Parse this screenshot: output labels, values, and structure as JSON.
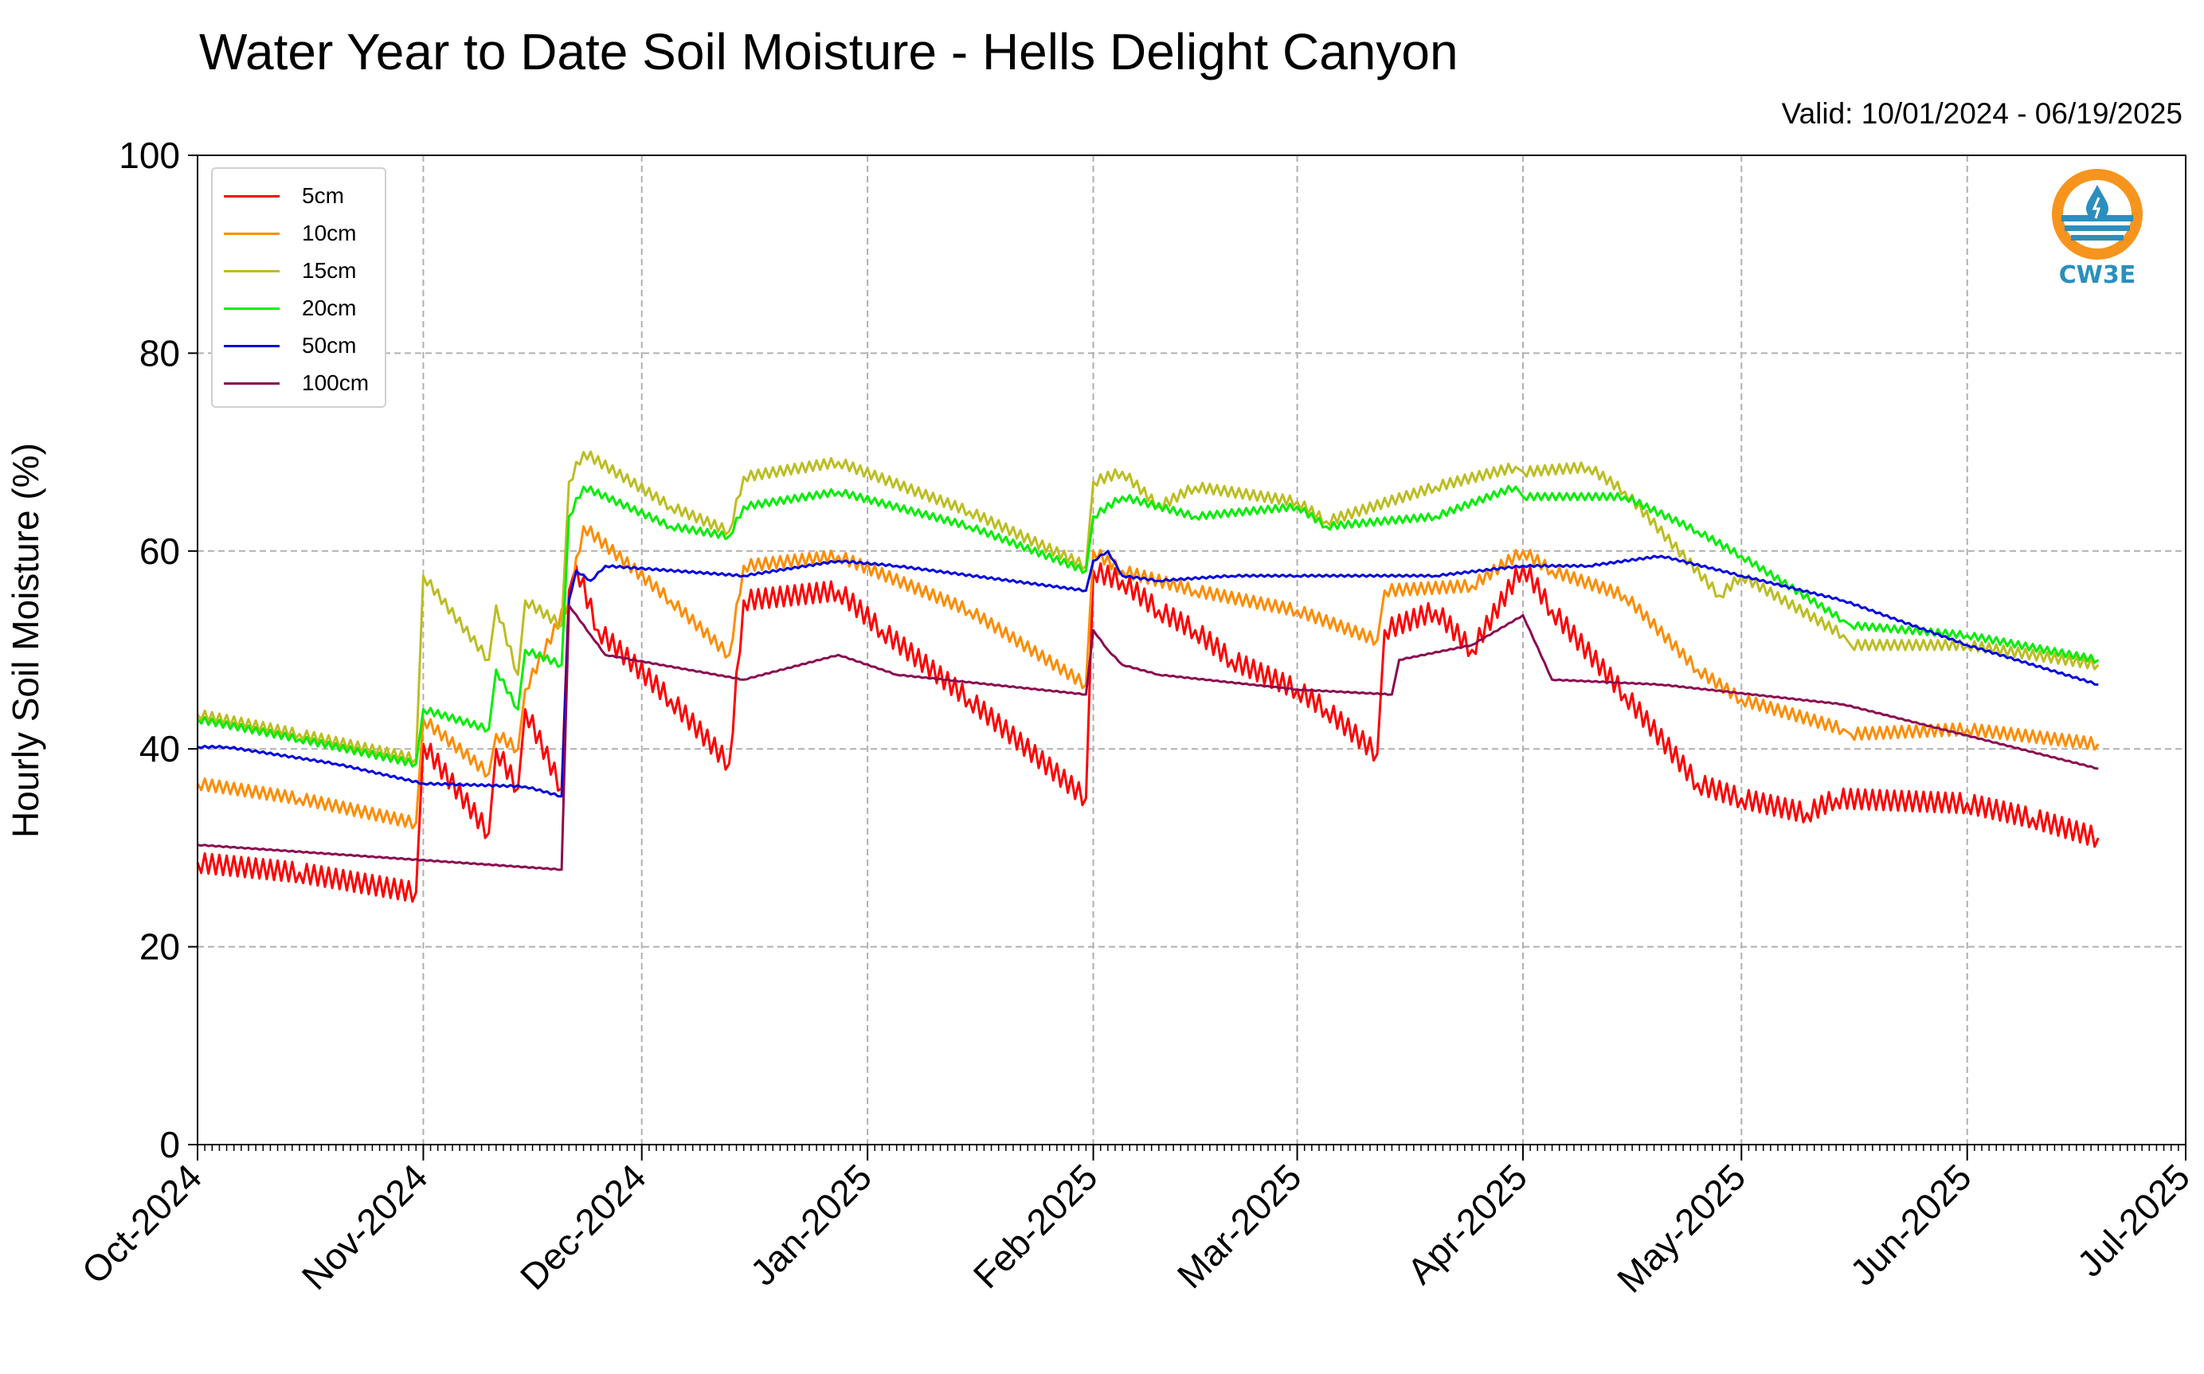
{
  "chart_data": {
    "type": "line",
    "title": "Water Year to Date Soil Moisture - Hells Delight Canyon",
    "subtitle": "Valid: 10/01/2024 - 06/19/2025",
    "xlabel": "",
    "ylabel": "Hourly Soil Moisture (%)",
    "ylim": [
      0,
      100
    ],
    "yticks": [
      0,
      20,
      40,
      60,
      80,
      100
    ],
    "xlim": [
      "2024-10-01",
      "2025-07-01"
    ],
    "xticks": [
      {
        "date": "2024-10-01",
        "label": "Oct-2024"
      },
      {
        "date": "2024-11-01",
        "label": "Nov-2024"
      },
      {
        "date": "2024-12-01",
        "label": "Dec-2024"
      },
      {
        "date": "2025-01-01",
        "label": "Jan-2025"
      },
      {
        "date": "2025-02-01",
        "label": "Feb-2025"
      },
      {
        "date": "2025-03-01",
        "label": "Mar-2025"
      },
      {
        "date": "2025-04-01",
        "label": "Apr-2025"
      },
      {
        "date": "2025-05-01",
        "label": "May-2025"
      },
      {
        "date": "2025-06-01",
        "label": "Jun-2025"
      },
      {
        "date": "2025-07-01",
        "label": "Jul-2025"
      }
    ],
    "grid": true,
    "legend_position": "top-left",
    "series": [
      {
        "name": "5cm",
        "color": "#ff0000",
        "x": [
          "2024-10-01",
          "2024-10-15",
          "2024-10-31",
          "2024-11-01",
          "2024-11-10",
          "2024-11-11",
          "2024-11-14",
          "2024-11-15",
          "2024-11-20",
          "2024-11-21",
          "2024-11-22",
          "2024-11-25",
          "2024-12-05",
          "2024-12-13",
          "2024-12-15",
          "2024-12-28",
          "2025-01-03",
          "2025-01-15",
          "2025-01-31",
          "2025-02-01",
          "2025-02-05",
          "2025-02-10",
          "2025-02-15",
          "2025-02-20",
          "2025-03-01",
          "2025-03-05",
          "2025-03-12",
          "2025-03-13",
          "2025-03-20",
          "2025-03-25",
          "2025-04-01",
          "2025-04-05",
          "2025-04-15",
          "2025-04-25",
          "2025-05-01",
          "2025-05-10",
          "2025-05-14",
          "2025-06-01",
          "2025-06-10",
          "2025-06-19"
        ],
        "y": [
          28.5,
          27.5,
          25.5,
          40.5,
          31.5,
          40.0,
          36.0,
          44.0,
          36.0,
          56.0,
          58.5,
          52.0,
          45.0,
          38.5,
          55.0,
          56.0,
          52.0,
          45.0,
          35.0,
          58.0,
          57.0,
          54.0,
          52.0,
          49.0,
          46.0,
          44.0,
          39.5,
          52.0,
          54.0,
          50.0,
          58.5,
          54.0,
          45.5,
          36.5,
          35.0,
          33.5,
          35.0,
          34.5,
          33.0,
          31.0
        ]
      },
      {
        "name": "10cm",
        "color": "#ff8c00",
        "x": [
          "2024-10-01",
          "2024-10-15",
          "2024-10-31",
          "2024-11-01",
          "2024-11-10",
          "2024-11-11",
          "2024-11-14",
          "2024-11-15",
          "2024-11-21",
          "2024-11-23",
          "2024-12-05",
          "2024-12-13",
          "2024-12-15",
          "2024-12-28",
          "2025-01-15",
          "2025-01-31",
          "2025-02-01",
          "2025-02-05",
          "2025-02-15",
          "2025-03-01",
          "2025-03-12",
          "2025-03-13",
          "2025-03-25",
          "2025-04-01",
          "2025-04-05",
          "2025-04-15",
          "2025-04-25",
          "2025-05-01",
          "2025-05-15",
          "2025-05-16",
          "2025-06-01",
          "2025-06-19"
        ],
        "y": [
          36.5,
          35.0,
          32.5,
          43.0,
          37.5,
          41.5,
          40.0,
          46.0,
          55.0,
          62.5,
          55.0,
          49.5,
          58.5,
          59.5,
          54.0,
          46.5,
          60.0,
          58.0,
          56.0,
          54.0,
          51.0,
          56.0,
          56.5,
          60.0,
          58.0,
          55.5,
          48.0,
          45.0,
          42.0,
          41.5,
          42.0,
          40.5
        ]
      },
      {
        "name": "15cm",
        "color": "#bcbd22",
        "x": [
          "2024-10-01",
          "2024-10-15",
          "2024-10-31",
          "2024-11-01",
          "2024-11-10",
          "2024-11-11",
          "2024-11-14",
          "2024-11-15",
          "2024-11-20",
          "2024-11-21",
          "2024-11-23",
          "2024-12-05",
          "2024-12-13",
          "2024-12-15",
          "2024-12-28",
          "2025-01-15",
          "2025-01-31",
          "2025-02-01",
          "2025-02-05",
          "2025-02-10",
          "2025-02-15",
          "2025-03-01",
          "2025-03-05",
          "2025-03-20",
          "2025-03-31",
          "2025-04-01",
          "2025-04-10",
          "2025-04-15",
          "2025-04-28",
          "2025-05-01",
          "2025-05-15",
          "2025-05-16",
          "2025-06-01",
          "2025-06-19"
        ],
        "y": [
          43.5,
          41.5,
          39.0,
          57.5,
          49.0,
          54.5,
          47.5,
          55.0,
          52.5,
          67.0,
          70.0,
          64.5,
          62.0,
          67.5,
          69.0,
          64.0,
          58.5,
          67.0,
          68.0,
          64.5,
          66.5,
          65.0,
          63.0,
          66.5,
          68.5,
          68.0,
          68.5,
          66.0,
          55.5,
          57.5,
          51.5,
          50.5,
          50.5,
          48.5
        ]
      },
      {
        "name": "20cm",
        "color": "#00ee00",
        "x": [
          "2024-10-01",
          "2024-10-15",
          "2024-10-31",
          "2024-11-01",
          "2024-11-10",
          "2024-11-11",
          "2024-11-14",
          "2024-11-15",
          "2024-11-20",
          "2024-11-21",
          "2024-11-23",
          "2024-12-05",
          "2024-12-13",
          "2024-12-15",
          "2024-12-28",
          "2025-01-15",
          "2025-01-31",
          "2025-02-01",
          "2025-02-05",
          "2025-02-15",
          "2025-03-01",
          "2025-03-05",
          "2025-03-20",
          "2025-03-31",
          "2025-04-01",
          "2025-04-15",
          "2025-04-25",
          "2025-05-01",
          "2025-05-15",
          "2025-05-16",
          "2025-06-01",
          "2025-06-19"
        ],
        "y": [
          43.0,
          41.0,
          38.5,
          44.0,
          42.0,
          48.0,
          44.0,
          50.0,
          48.5,
          63.5,
          66.5,
          62.5,
          61.5,
          64.5,
          66.0,
          62.5,
          58.0,
          63.5,
          65.5,
          63.5,
          64.5,
          62.5,
          63.5,
          66.5,
          65.5,
          65.5,
          62.0,
          59.5,
          53.0,
          52.5,
          51.5,
          49.0
        ]
      },
      {
        "name": "50cm",
        "color": "#0000dd",
        "x": [
          "2024-10-01",
          "2024-10-05",
          "2024-10-20",
          "2024-11-01",
          "2024-11-15",
          "2024-11-20",
          "2024-11-21",
          "2024-11-22",
          "2024-11-24",
          "2024-11-26",
          "2024-12-15",
          "2024-12-28",
          "2025-01-05",
          "2025-01-31",
          "2025-02-01",
          "2025-02-03",
          "2025-02-05",
          "2025-02-10",
          "2025-02-20",
          "2025-03-01",
          "2025-03-20",
          "2025-04-01",
          "2025-04-10",
          "2025-04-20",
          "2025-05-01",
          "2025-05-15",
          "2025-06-01",
          "2025-06-19"
        ],
        "y": [
          40.2,
          40.2,
          38.5,
          36.5,
          36.2,
          35.2,
          55.0,
          58.0,
          57.0,
          58.5,
          57.5,
          59.0,
          58.5,
          56.0,
          59.0,
          60.0,
          57.5,
          57.0,
          57.5,
          57.5,
          57.5,
          58.5,
          58.5,
          59.5,
          57.5,
          55.0,
          50.5,
          46.5
        ]
      },
      {
        "name": "100cm",
        "color": "#8b0a50",
        "x": [
          "2024-10-01",
          "2024-11-20",
          "2024-11-21",
          "2024-11-24",
          "2024-11-26",
          "2024-12-15",
          "2024-12-28",
          "2025-01-05",
          "2025-01-31",
          "2025-02-01",
          "2025-02-03",
          "2025-02-05",
          "2025-02-10",
          "2025-03-01",
          "2025-03-14",
          "2025-03-15",
          "2025-03-25",
          "2025-04-01",
          "2025-04-05",
          "2025-04-20",
          "2025-05-15",
          "2025-06-19"
        ],
        "y": [
          30.3,
          27.8,
          54.5,
          51.5,
          49.5,
          47.0,
          49.5,
          47.5,
          45.5,
          52.0,
          50.0,
          48.5,
          47.5,
          46.0,
          45.5,
          49.0,
          50.5,
          53.5,
          47.0,
          46.5,
          44.5,
          38.0
        ]
      }
    ],
    "annotations": [
      "CW3E"
    ]
  },
  "logo": {
    "text": "CW3E",
    "ring_color": "#f7941d",
    "water_color": "#2a8fbe"
  }
}
